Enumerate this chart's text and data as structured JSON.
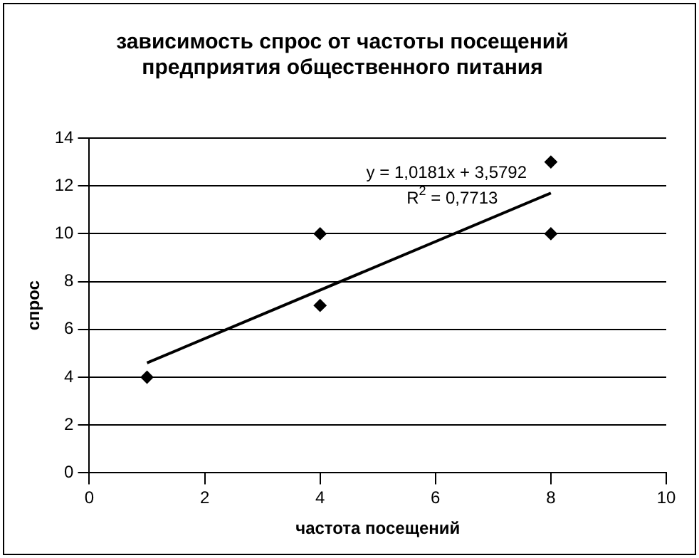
{
  "chart_data": {
    "type": "scatter",
    "title": "зависимость спрос от частоты посещений предприятия общественного питания",
    "xlabel": "частота посещений",
    "ylabel": "спрос",
    "series": [
      {
        "type": "scatter",
        "color": "#000000",
        "marker": "diamond",
        "x": [
          1,
          4,
          4,
          8,
          8
        ],
        "values": [
          4,
          7,
          10,
          10,
          13
        ]
      },
      {
        "type": "line",
        "color": "#000000",
        "marker": "none",
        "x": [
          1,
          8
        ],
        "values": [
          4.6,
          11.7
        ]
      }
    ],
    "annotations": [
      "y = 1,0181x + 3,5792",
      "R$^{2}$ = 0,7713"
    ],
    "xlim": [
      0,
      10
    ],
    "xticks": [
      0,
      2,
      4,
      6,
      8,
      10
    ],
    "ylim": [
      0,
      14
    ],
    "yticks": [
      0,
      2,
      4,
      6,
      8,
      10,
      12,
      14
    ],
    "grid": "y",
    "legend": false
  }
}
